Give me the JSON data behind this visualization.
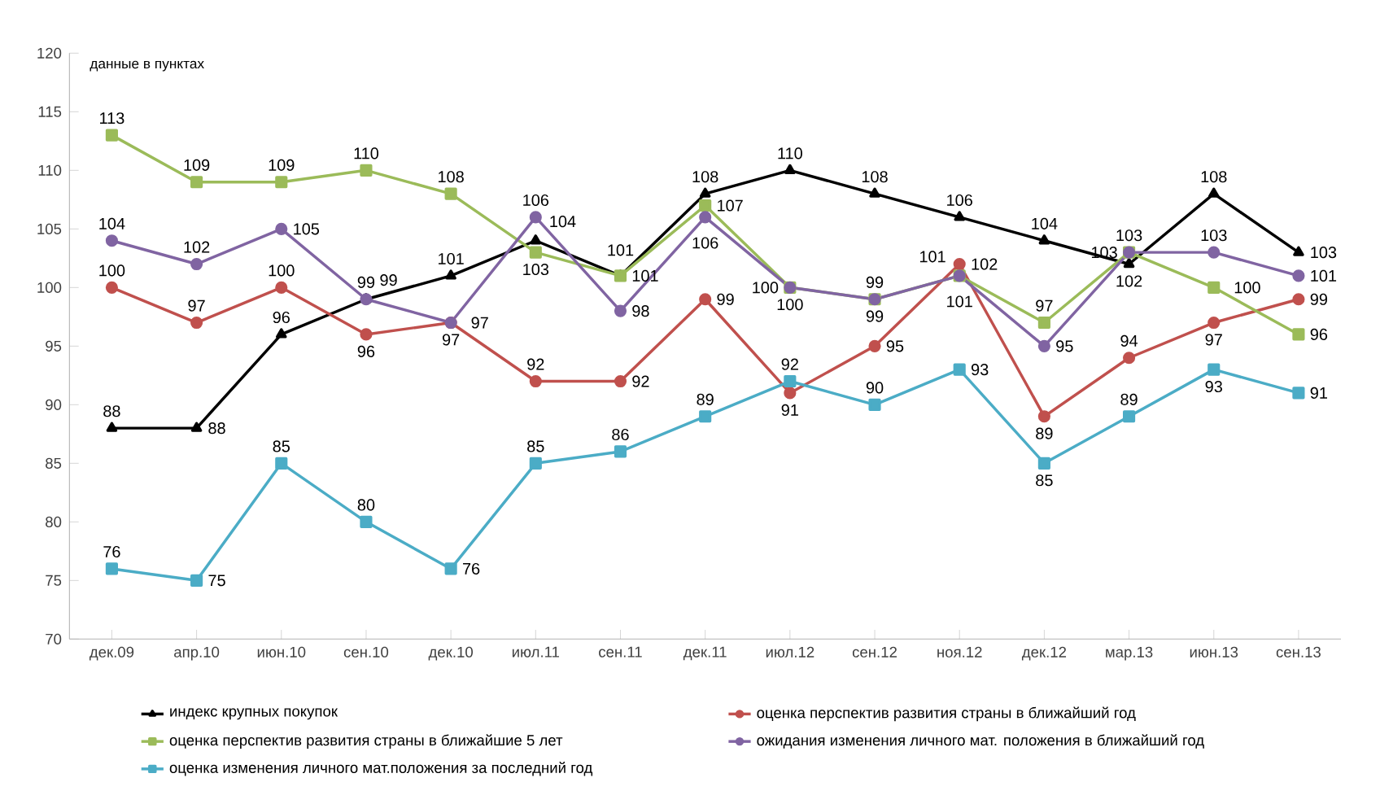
{
  "chart_data": {
    "type": "line",
    "annotations": [
      "данные в пунктах"
    ],
    "categories": [
      "дек.09",
      "апр.10",
      "июн.10",
      "сен.10",
      "дек.10",
      "июл.11",
      "сен.11",
      "дек.11",
      "июл.12",
      "сен.12",
      "ноя.12",
      "дек.12",
      "мар.13",
      "июн.13",
      "сен.13"
    ],
    "series": [
      {
        "name": "индекс крупных покупок",
        "color": "#000000",
        "marker": "triangle",
        "values": [
          88,
          88,
          96,
          99,
          101,
          104,
          101,
          108,
          110,
          108,
          106,
          104,
          102,
          108,
          103
        ]
      },
      {
        "name": "оценка перспектив развития страны в ближайший год",
        "color": "#c0504d",
        "marker": "circle",
        "values": [
          100,
          97,
          100,
          96,
          97,
          92,
          92,
          99,
          91,
          95,
          102,
          89,
          94,
          97,
          99
        ]
      },
      {
        "name": "оценка перспектив развития страны в ближайшие 5 лет",
        "color": "#9bbb59",
        "marker": "square",
        "values": [
          113,
          109,
          109,
          110,
          108,
          103,
          101,
          107,
          100,
          99,
          101,
          97,
          103,
          100,
          96
        ]
      },
      {
        "name": "ожидания изменения личного мат. положения в ближайший год",
        "color": "#8064a2",
        "marker": "circle",
        "values": [
          104,
          102,
          105,
          99,
          97,
          106,
          98,
          106,
          100,
          99,
          101,
          95,
          103,
          103,
          101
        ]
      },
      {
        "name": "оценка изменения личного мат.положения за последний год",
        "color": "#4bacc6",
        "marker": "square",
        "values": [
          76,
          75,
          85,
          80,
          76,
          85,
          86,
          89,
          92,
          90,
          93,
          85,
          89,
          93,
          91
        ]
      }
    ],
    "ylim": [
      70,
      120
    ],
    "yticks": [
      70,
      75,
      80,
      85,
      90,
      95,
      100,
      105,
      110,
      115,
      120
    ],
    "data_labels": true,
    "legend": "bottom",
    "grid": false,
    "line_style": "solid"
  }
}
